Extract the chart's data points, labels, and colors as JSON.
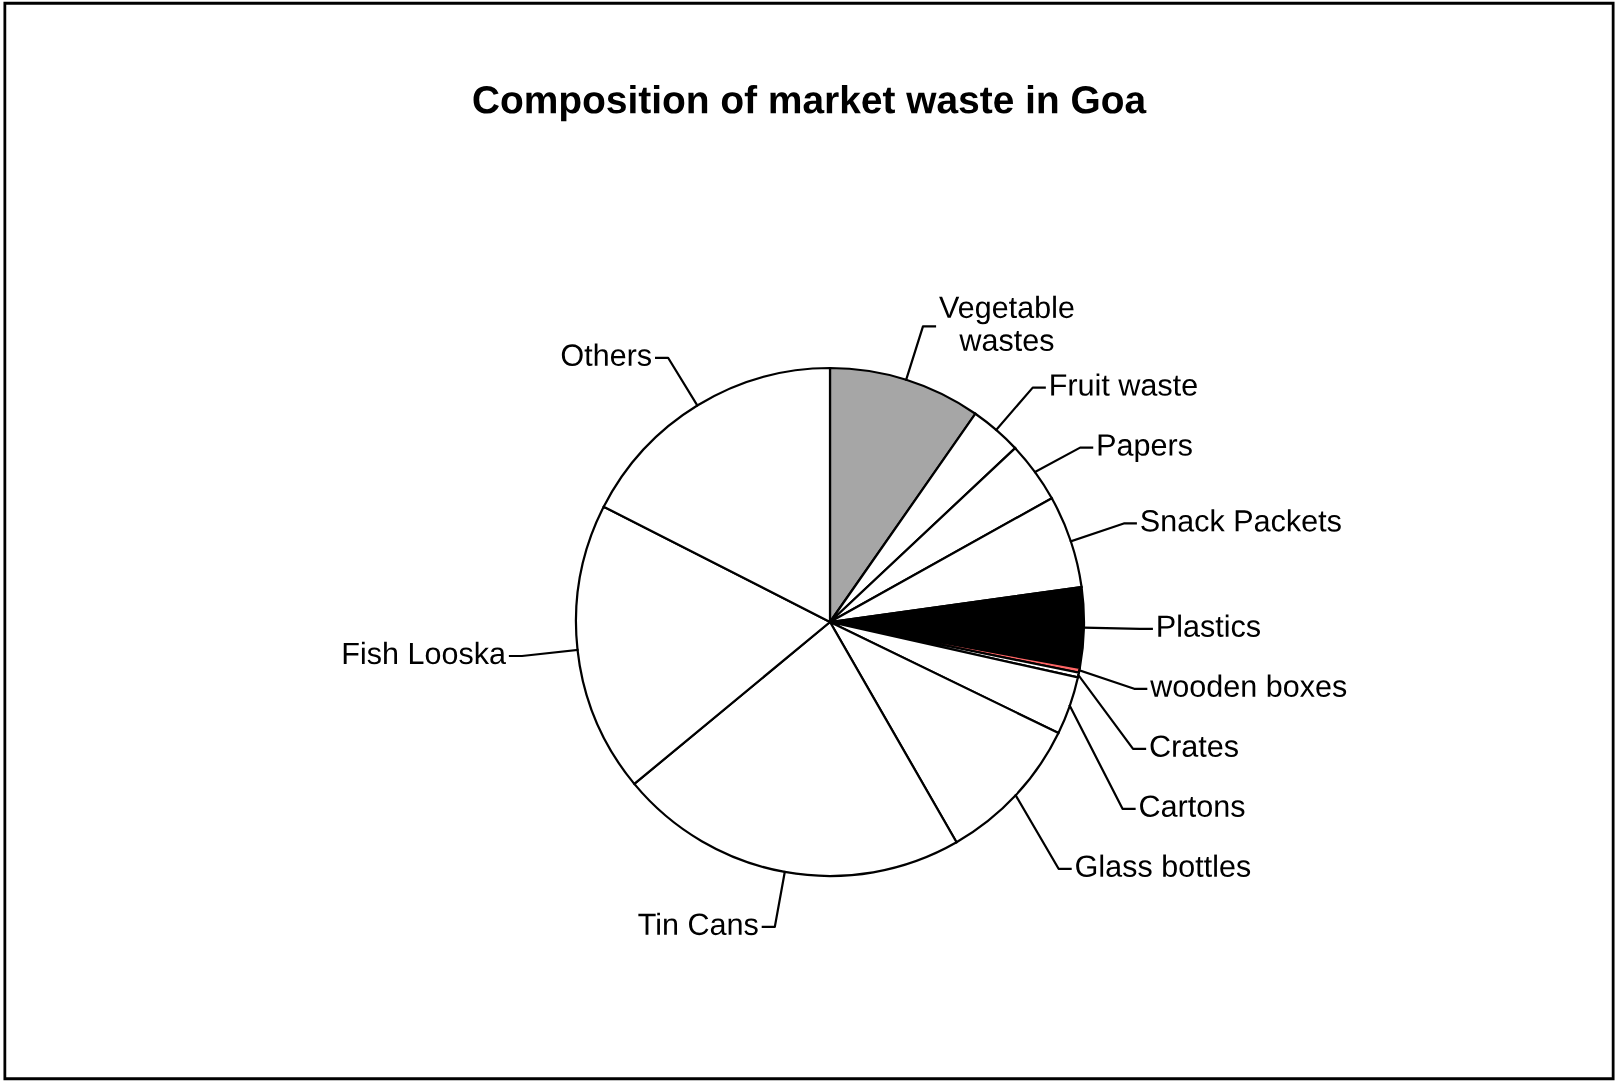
{
  "chart_data": {
    "type": "pie",
    "title": "Composition of market waste in Goa",
    "categories": [
      "Vegetable\nwastes",
      "Fruit waste",
      "Papers",
      "Snack Packets",
      "Plastics",
      "wooden boxes",
      "Crates",
      "Cartons",
      "Glass bottles",
      "Tin Cans",
      "Fish Looska",
      "Others"
    ],
    "values": [
      9.7,
      3.3,
      3.9,
      5.9,
      5.1,
      0.3,
      0.3,
      3.7,
      9.5,
      22.3,
      18.5,
      17.5
    ],
    "colors": [
      "#a6a6a6",
      "#ffffff",
      "#ffffff",
      "#ffffff",
      "#000000",
      "#ff6666",
      "#ffffff",
      "#ffffff",
      "#ffffff",
      "#ffffff",
      "#ffffff",
      "#ffffff"
    ],
    "legend": false
  }
}
